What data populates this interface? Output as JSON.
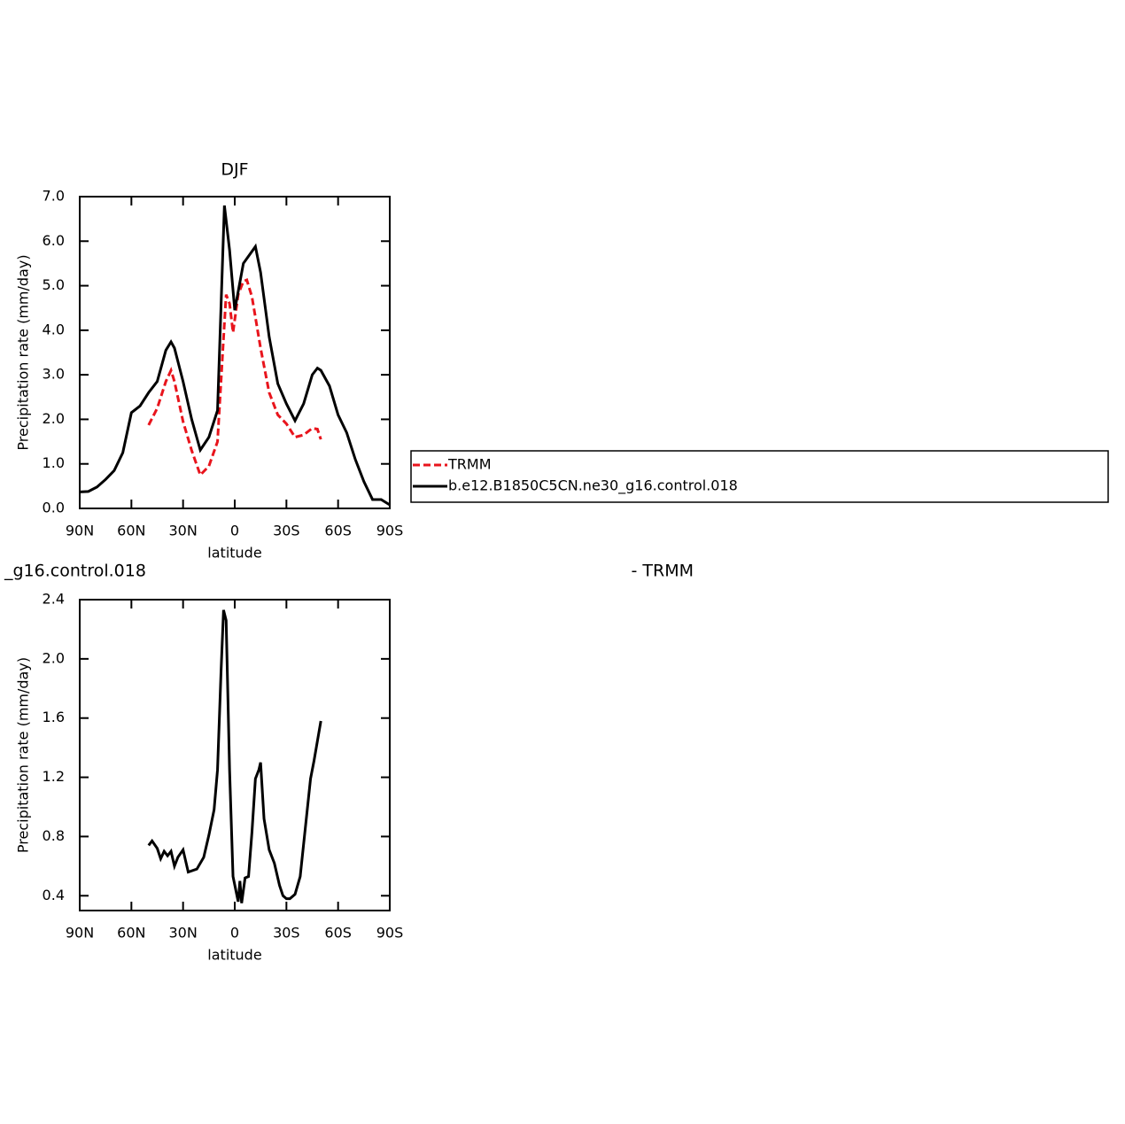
{
  "chart_data": [
    {
      "type": "line",
      "title": "DJF",
      "xlabel": "latitude",
      "ylabel": "Precipitation rate (mm/day)",
      "xlim": [
        90,
        -90
      ],
      "xticks": [
        {
          "value": 90,
          "label": "90N"
        },
        {
          "value": 60,
          "label": "60N"
        },
        {
          "value": 30,
          "label": "30N"
        },
        0,
        {
          "value": -30,
          "label": "30S"
        },
        {
          "value": -60,
          "label": "60S"
        },
        {
          "value": -90,
          "label": "90S"
        }
      ],
      "ylim": [
        0,
        7
      ],
      "yticks": [
        {
          "value": 0,
          "label": "0.0"
        },
        {
          "value": 1,
          "label": "1.0"
        },
        {
          "value": 2,
          "label": "2.0"
        },
        {
          "value": 3,
          "label": "3.0"
        },
        {
          "value": 4,
          "label": "4.0"
        },
        {
          "value": 5,
          "label": "5.0"
        },
        {
          "value": 6,
          "label": "6.0"
        },
        {
          "value": 7,
          "label": "7.0"
        }
      ],
      "series": [
        {
          "name": "TRMM",
          "color": "#e8141c",
          "dash": true,
          "x": [
            50,
            45,
            40,
            37,
            35,
            30,
            25,
            20,
            15,
            10,
            7,
            5,
            3,
            1,
            -2,
            -5,
            -7,
            -10,
            -15,
            -20,
            -25,
            -30,
            -35,
            -40,
            -45,
            -48,
            -50
          ],
          "values": [
            1.87,
            2.25,
            2.85,
            3.1,
            2.85,
            1.95,
            1.3,
            0.75,
            0.95,
            1.5,
            3.5,
            4.8,
            4.6,
            3.95,
            4.8,
            5.1,
            5.13,
            4.75,
            3.6,
            2.6,
            2.1,
            1.9,
            1.6,
            1.65,
            1.8,
            1.78,
            1.55
          ]
        },
        {
          "name": "b.e12.B1850C5CN.ne30_g16.control.018",
          "color": "#000000",
          "dash": false,
          "x": [
            90,
            85,
            80,
            75,
            70,
            65,
            60,
            55,
            50,
            45,
            40,
            37,
            35,
            30,
            25,
            20,
            15,
            10,
            6,
            3,
            0,
            -5,
            -12,
            -15,
            -20,
            -25,
            -30,
            -35,
            -40,
            -45,
            -48,
            -50,
            -55,
            -60,
            -65,
            -70,
            -75,
            -80,
            -85,
            -90
          ],
          "values": [
            0.37,
            0.38,
            0.48,
            0.65,
            0.85,
            1.25,
            2.15,
            2.3,
            2.6,
            2.85,
            3.55,
            3.74,
            3.6,
            2.85,
            2.0,
            1.31,
            1.6,
            2.2,
            6.8,
            5.8,
            4.45,
            5.5,
            5.88,
            5.3,
            3.85,
            2.8,
            2.35,
            1.97,
            2.35,
            3.0,
            3.15,
            3.1,
            2.75,
            2.1,
            1.7,
            1.1,
            0.6,
            0.2,
            0.2,
            0.08
          ]
        }
      ]
    },
    {
      "type": "line",
      "left_title": "_g16.control.018",
      "right_title": "- TRMM",
      "xlabel": "latitude",
      "ylabel": "Precipitation rate (mm/day)",
      "xlim": [
        90,
        -90
      ],
      "xticks": [
        {
          "value": 90,
          "label": "90N"
        },
        {
          "value": 60,
          "label": "60N"
        },
        {
          "value": 30,
          "label": "30N"
        },
        0,
        {
          "value": -30,
          "label": "30S"
        },
        {
          "value": -60,
          "label": "60S"
        },
        {
          "value": -90,
          "label": "90S"
        }
      ],
      "ylim": [
        0.3,
        2.4
      ],
      "yticks": [
        0.4,
        0.8,
        1.2,
        1.6,
        {
          "value": 2,
          "label": "2.0"
        },
        2.4
      ],
      "series": [
        {
          "color": "#000000",
          "dash": false,
          "x": [
            50,
            48,
            45,
            43,
            41,
            39,
            37,
            35,
            33,
            30,
            27,
            22,
            18,
            15,
            12,
            10,
            8,
            6.5,
            5,
            3,
            1,
            -2,
            -3,
            -4,
            -6,
            -8,
            -10,
            -12,
            -14,
            -15,
            -17,
            -20,
            -23,
            -26,
            -28,
            -30,
            -32,
            -35,
            -38,
            -41,
            -44,
            -46,
            -50
          ],
          "values": [
            0.74,
            0.77,
            0.72,
            0.65,
            0.7,
            0.67,
            0.7,
            0.6,
            0.66,
            0.71,
            0.56,
            0.58,
            0.66,
            0.81,
            0.98,
            1.25,
            1.9,
            2.33,
            2.26,
            1.25,
            0.53,
            0.36,
            0.5,
            0.35,
            0.52,
            0.53,
            0.83,
            1.19,
            1.25,
            1.3,
            0.92,
            0.71,
            0.62,
            0.47,
            0.4,
            0.38,
            0.38,
            0.41,
            0.53,
            0.86,
            1.19,
            1.31,
            1.58
          ]
        }
      ]
    }
  ]
}
